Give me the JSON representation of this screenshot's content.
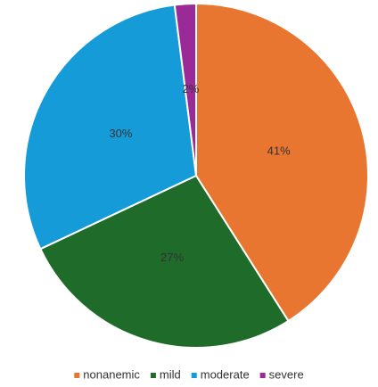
{
  "chart_data": {
    "type": "pie",
    "categories": [
      "nonanemic",
      "mild",
      "moderate",
      "severe"
    ],
    "values": [
      41,
      27,
      30,
      2
    ],
    "value_labels": [
      "41%",
      "27%",
      "30%",
      "2%"
    ],
    "colors": [
      "#e87630",
      "#1e6b2a",
      "#159bd7",
      "#9a2a98"
    ],
    "legend": "bottom"
  }
}
